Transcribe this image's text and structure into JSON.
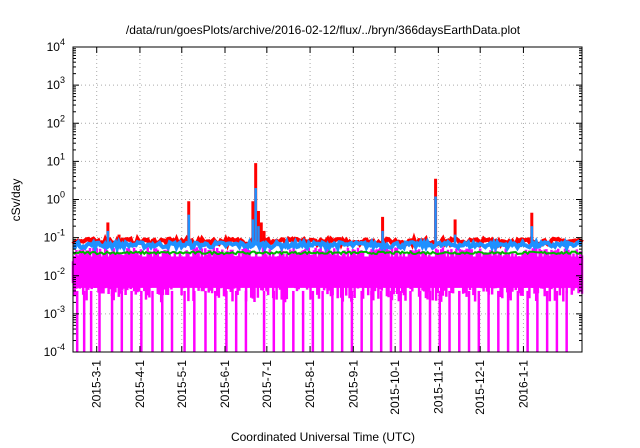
{
  "chart_data": {
    "type": "line",
    "title": "/data/run/goesPlots/archive/2016-02-12/flux/../bryn/366daysEarthData.plot",
    "xlabel": "Coordinated Universal Time (UTC)",
    "ylabel": "cSv/day",
    "yscale": "log",
    "ylim": [
      0.0001,
      10000
    ],
    "xlim": [
      "2015-02-12",
      "2016-02-12"
    ],
    "grid": true,
    "y_ticks": [
      {
        "value": 0.0001,
        "mantissa": "10",
        "exponent": "-4"
      },
      {
        "value": 0.001,
        "mantissa": "10",
        "exponent": "-3"
      },
      {
        "value": 0.01,
        "mantissa": "10",
        "exponent": "-2"
      },
      {
        "value": 0.1,
        "mantissa": "10",
        "exponent": "-1"
      },
      {
        "value": 1,
        "mantissa": "10",
        "exponent": "0"
      },
      {
        "value": 10,
        "mantissa": "10",
        "exponent": "1"
      },
      {
        "value": 100,
        "mantissa": "10",
        "exponent": "2"
      },
      {
        "value": 1000,
        "mantissa": "10",
        "exponent": "3"
      },
      {
        "value": 10000,
        "mantissa": "10",
        "exponent": "4"
      }
    ],
    "x_ticks": [
      {
        "date": "2015-03-01",
        "label": "2015-3-1"
      },
      {
        "date": "2015-04-01",
        "label": "2015-4-1"
      },
      {
        "date": "2015-05-01",
        "label": "2015-5-1"
      },
      {
        "date": "2015-06-01",
        "label": "2015-6-1"
      },
      {
        "date": "2015-07-01",
        "label": "2015-7-1"
      },
      {
        "date": "2015-08-01",
        "label": "2015-8-1"
      },
      {
        "date": "2015-09-01",
        "label": "2015-9-1"
      },
      {
        "date": "2015-10-01",
        "label": "2015-10-1"
      },
      {
        "date": "2015-11-01",
        "label": "2015-11-1"
      },
      {
        "date": "2015-12-01",
        "label": "2015-12-1"
      },
      {
        "date": "2016-01-01",
        "label": "2016-1-1"
      }
    ],
    "series": [
      {
        "color": "#ff0000",
        "baseline": 0.08,
        "peaks": [
          {
            "date": "2015-03-09",
            "value": 0.25
          },
          {
            "date": "2015-03-17",
            "value": 0.12
          },
          {
            "date": "2015-05-06",
            "value": 0.9
          },
          {
            "date": "2015-06-21",
            "value": 0.9
          },
          {
            "date": "2015-06-22",
            "value": 0.3
          },
          {
            "date": "2015-06-23",
            "value": 9.0
          },
          {
            "date": "2015-06-25",
            "value": 0.5
          },
          {
            "date": "2015-06-27",
            "value": 0.25
          },
          {
            "date": "2015-06-29",
            "value": 0.15
          },
          {
            "date": "2015-09-22",
            "value": 0.35
          },
          {
            "date": "2015-10-30",
            "value": 3.5
          },
          {
            "date": "2015-11-13",
            "value": 0.3
          },
          {
            "date": "2016-01-07",
            "value": 0.45
          }
        ]
      },
      {
        "color": "#1e90ff",
        "baseline": 0.065,
        "peaks": [
          {
            "date": "2015-03-09",
            "value": 0.15
          },
          {
            "date": "2015-05-06",
            "value": 0.4
          },
          {
            "date": "2015-06-21",
            "value": 0.3
          },
          {
            "date": "2015-06-23",
            "value": 2.0
          },
          {
            "date": "2015-06-25",
            "value": 0.2
          },
          {
            "date": "2015-09-22",
            "value": 0.15
          },
          {
            "date": "2015-10-30",
            "value": 1.2
          },
          {
            "date": "2015-11-13",
            "value": 0.12
          },
          {
            "date": "2016-01-07",
            "value": 0.2
          }
        ]
      },
      {
        "color": "#00b000",
        "baseline": 0.04,
        "peaks": []
      },
      {
        "color": "#ff00ff",
        "upper": 0.04,
        "lower": 0.004,
        "dropouts": [
          "2015-02-15",
          "2015-02-20",
          "2015-02-25",
          "2015-03-03",
          "2015-03-12",
          "2015-03-19",
          "2015-03-26",
          "2015-04-02",
          "2015-04-10",
          "2015-04-17",
          "2015-04-24",
          "2015-05-03",
          "2015-05-10",
          "2015-05-18",
          "2015-05-25",
          "2015-06-02",
          "2015-06-09",
          "2015-06-16",
          "2015-06-29",
          "2015-07-06",
          "2015-07-13",
          "2015-07-20",
          "2015-07-27",
          "2015-08-03",
          "2015-08-10",
          "2015-08-17",
          "2015-08-24",
          "2015-08-31",
          "2015-09-07",
          "2015-09-14",
          "2015-09-21",
          "2015-09-28",
          "2015-10-05",
          "2015-10-12",
          "2015-10-19",
          "2015-10-26",
          "2015-11-02",
          "2015-11-09",
          "2015-11-16",
          "2015-11-23",
          "2015-11-30",
          "2015-12-07",
          "2015-12-14",
          "2015-12-21",
          "2015-12-28",
          "2016-01-04",
          "2016-01-11",
          "2016-01-18",
          "2016-01-25",
          "2016-02-01"
        ]
      }
    ]
  }
}
